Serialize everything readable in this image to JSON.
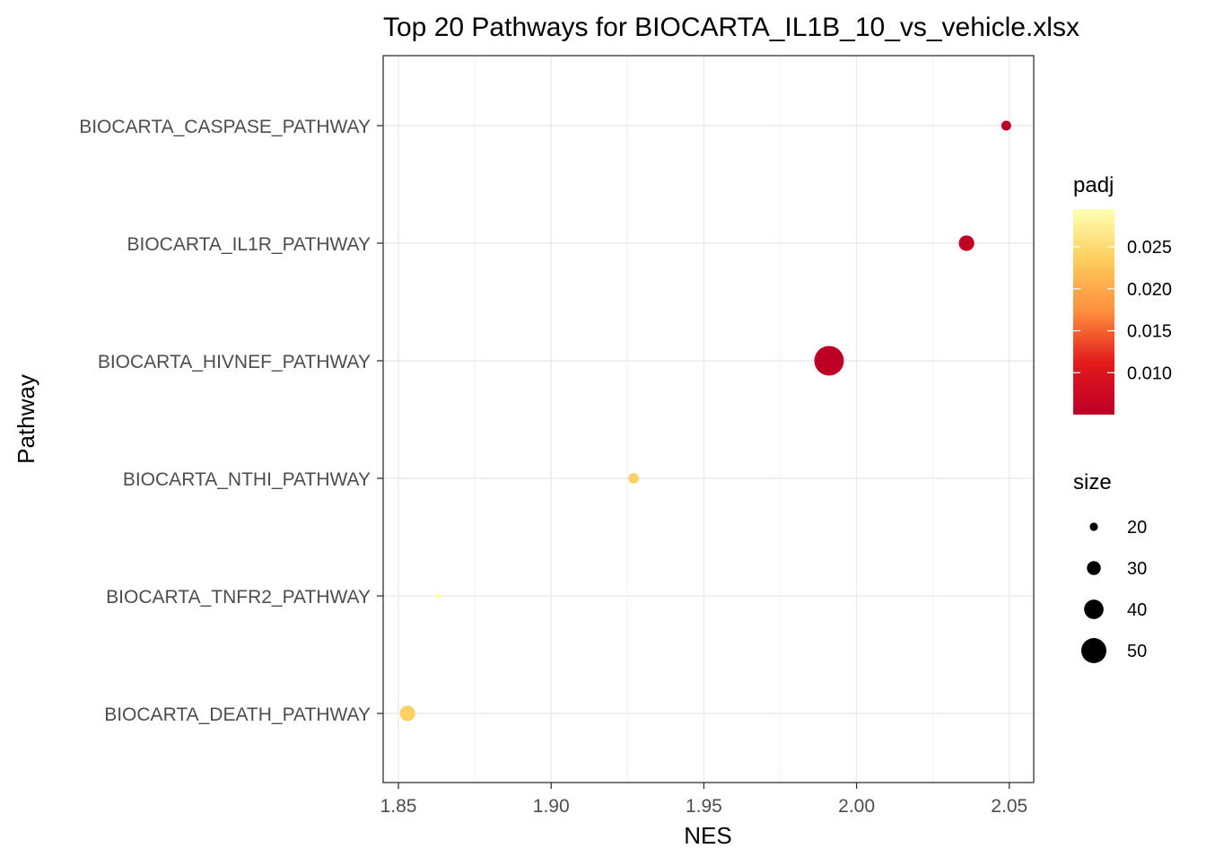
{
  "chart_data": {
    "type": "scatter",
    "title": "Top 20 Pathways for  BIOCARTA_IL1B_10_vs_vehicle.xlsx",
    "xlabel": "NES",
    "ylabel": "Pathway",
    "xlim": [
      1.845,
      2.058
    ],
    "x_ticks": [
      1.85,
      1.9,
      1.95,
      2.0,
      2.05
    ],
    "x_tick_labels": [
      "1.85",
      "1.90",
      "1.95",
      "2.00",
      "2.05"
    ],
    "categories": [
      "BIOCARTA_CASPASE_PATHWAY",
      "BIOCARTA_IL1R_PATHWAY",
      "BIOCARTA_HIVNEF_PATHWAY",
      "BIOCARTA_NTHI_PATHWAY",
      "BIOCARTA_TNFR2_PATHWAY",
      "BIOCARTA_DEATH_PATHWAY"
    ],
    "points": [
      {
        "pathway": "BIOCARTA_CASPASE_PATHWAY",
        "NES": 2.049,
        "padj": 0.005,
        "size": 23
      },
      {
        "pathway": "BIOCARTA_IL1R_PATHWAY",
        "NES": 2.036,
        "padj": 0.0055,
        "size": 33
      },
      {
        "pathway": "BIOCARTA_HIVNEF_PATHWAY",
        "NES": 1.991,
        "padj": 0.005,
        "size": 58
      },
      {
        "pathway": "BIOCARTA_NTHI_PATHWAY",
        "NES": 1.927,
        "padj": 0.024,
        "size": 24
      },
      {
        "pathway": "BIOCARTA_TNFR2_PATHWAY",
        "NES": 1.863,
        "padj": 0.0295,
        "size": 15
      },
      {
        "pathway": "BIOCARTA_DEATH_PATHWAY",
        "NES": 1.853,
        "padj": 0.024,
        "size": 33
      }
    ],
    "color_legend": {
      "title": "padj",
      "range": [
        0.005,
        0.0295
      ],
      "ticks": [
        0.01,
        0.015,
        0.02,
        0.025
      ],
      "tick_labels": [
        "0.010",
        "0.015",
        "0.020",
        "0.025"
      ],
      "colors": [
        "#bd0026",
        "#e31a1c",
        "#fd8d3c",
        "#fecc5c",
        "#ffffb2"
      ]
    },
    "size_legend": {
      "title": "size",
      "values": [
        20,
        30,
        40,
        50
      ],
      "labels": [
        "20",
        "30",
        "40",
        "50"
      ]
    },
    "grid": true,
    "legend_position": "right"
  }
}
